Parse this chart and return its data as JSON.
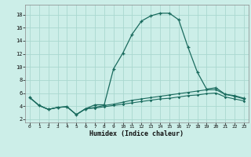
{
  "xlabel": "Humidex (Indice chaleur)",
  "background_color": "#cceee8",
  "grid_color": "#aad8d0",
  "line_color": "#1a6b5e",
  "x_values": [
    0,
    1,
    2,
    3,
    4,
    5,
    6,
    7,
    8,
    9,
    10,
    11,
    12,
    13,
    14,
    15,
    16,
    17,
    18,
    19,
    20,
    21,
    22,
    23
  ],
  "line1_y": [
    5.3,
    4.1,
    3.5,
    3.8,
    3.9,
    2.7,
    3.6,
    4.2,
    4.2,
    9.7,
    12.1,
    15.0,
    17.0,
    17.8,
    18.2,
    18.2,
    17.2,
    13.0,
    9.2,
    6.6,
    6.8,
    5.8,
    5.6,
    5.2
  ],
  "line2_y": [
    5.3,
    4.1,
    3.5,
    3.8,
    3.9,
    2.7,
    3.6,
    3.8,
    4.1,
    4.3,
    4.6,
    4.9,
    5.1,
    5.3,
    5.5,
    5.7,
    5.9,
    6.1,
    6.3,
    6.5,
    6.5,
    5.8,
    5.5,
    5.1
  ],
  "line3_y": [
    5.3,
    4.1,
    3.5,
    3.8,
    3.9,
    2.7,
    3.6,
    3.7,
    3.9,
    4.1,
    4.3,
    4.5,
    4.7,
    4.9,
    5.1,
    5.2,
    5.4,
    5.6,
    5.7,
    5.9,
    6.0,
    5.4,
    5.1,
    4.8
  ],
  "ylim": [
    1.5,
    19.5
  ],
  "xlim": [
    -0.5,
    23.5
  ],
  "yticks": [
    2,
    4,
    6,
    8,
    10,
    12,
    14,
    16,
    18
  ],
  "xticks": [
    0,
    1,
    2,
    3,
    4,
    5,
    6,
    7,
    8,
    9,
    10,
    11,
    12,
    13,
    14,
    15,
    16,
    17,
    18,
    19,
    20,
    21,
    22,
    23
  ]
}
